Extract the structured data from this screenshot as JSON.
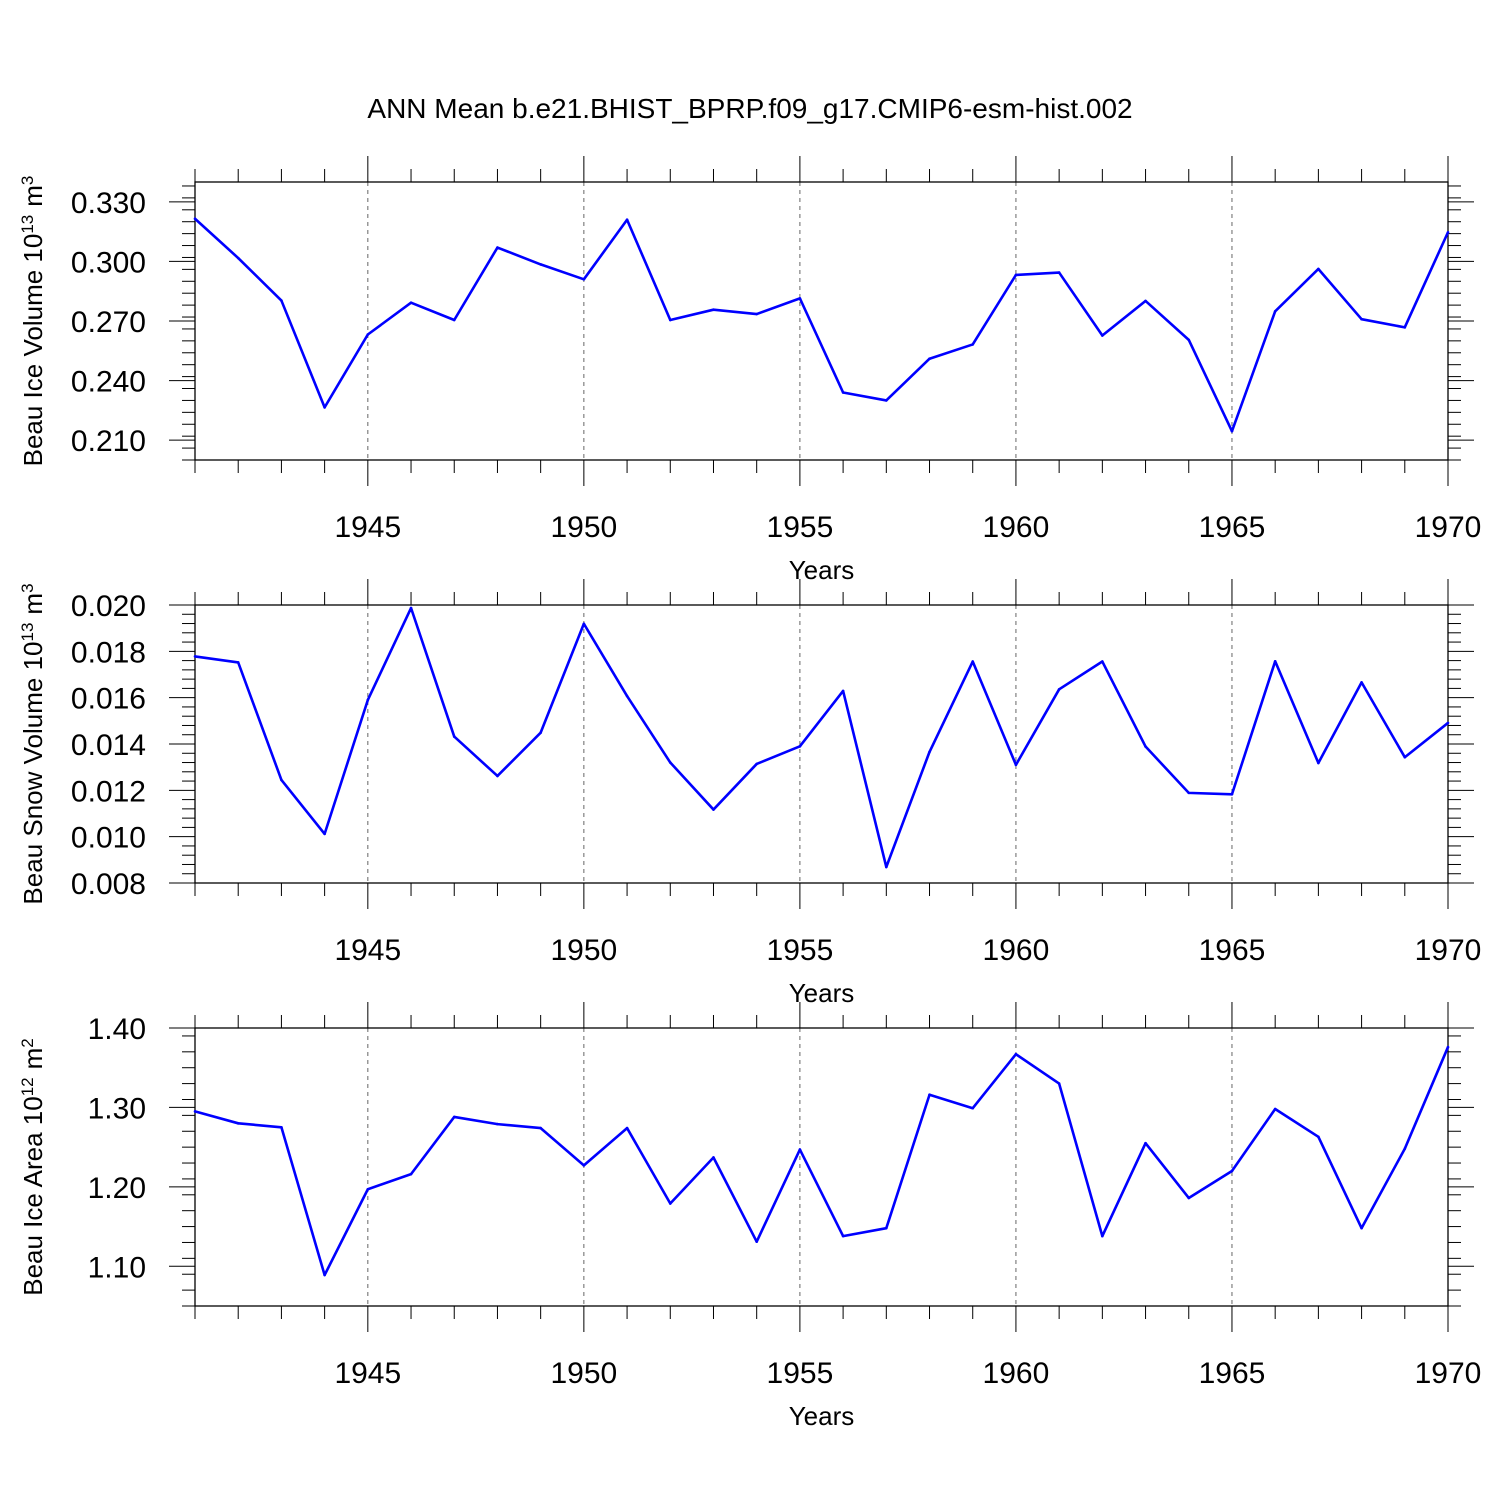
{
  "title": "ANN Mean b.e21.BHIST_BPRP.f09_g17.CMIP6-esm-hist.002",
  "colors": {
    "line": "#0000ff",
    "axis": "#000000",
    "grid": "#666666"
  },
  "chart_data": [
    {
      "type": "line",
      "ylabel": "Beau Ice Volume 10",
      "ylabel_exp": "13",
      "ylabel_unit": "m",
      "ylabel_unit_exp": "3",
      "xlabel": "Years",
      "xlim": [
        1941,
        1970
      ],
      "ylim": [
        0.2,
        0.34
      ],
      "yticks": [
        "0.210",
        "0.240",
        "0.270",
        "0.300",
        "0.330"
      ],
      "xticks": [
        "1945",
        "1950",
        "1955",
        "1960",
        "1965",
        "1970"
      ],
      "x": [
        1941,
        1942,
        1943,
        1944,
        1945,
        1946,
        1947,
        1948,
        1949,
        1950,
        1951,
        1952,
        1953,
        1954,
        1955,
        1956,
        1957,
        1958,
        1959,
        1960,
        1961,
        1962,
        1963,
        1964,
        1965,
        1966,
        1967,
        1968,
        1969,
        1970
      ],
      "values": [
        0.3215,
        0.3017,
        0.2803,
        0.2265,
        0.2632,
        0.2792,
        0.2705,
        0.307,
        0.2985,
        0.291,
        0.321,
        0.2705,
        0.2757,
        0.2735,
        0.2814,
        0.234,
        0.23,
        0.251,
        0.2582,
        0.2932,
        0.2944,
        0.2627,
        0.2801,
        0.2605,
        0.2145,
        0.2749,
        0.2962,
        0.2709,
        0.2668,
        0.3147
      ]
    },
    {
      "type": "line",
      "ylabel": "Beau Snow Volume 10",
      "ylabel_exp": "13",
      "ylabel_unit": "m",
      "ylabel_unit_exp": "3",
      "xlabel": "Years",
      "xlim": [
        1941,
        1970
      ],
      "ylim": [
        0.008,
        0.02
      ],
      "yticks": [
        "0.008",
        "0.010",
        "0.012",
        "0.014",
        "0.016",
        "0.018",
        "0.020"
      ],
      "xticks": [
        "1945",
        "1950",
        "1955",
        "1960",
        "1965",
        "1970"
      ],
      "x": [
        1941,
        1942,
        1943,
        1944,
        1945,
        1946,
        1947,
        1948,
        1949,
        1950,
        1951,
        1952,
        1953,
        1954,
        1955,
        1956,
        1957,
        1958,
        1959,
        1960,
        1961,
        1962,
        1963,
        1964,
        1965,
        1966,
        1967,
        1968,
        1969,
        1970
      ],
      "values": [
        0.01778,
        0.01752,
        0.01245,
        0.01012,
        0.0159,
        0.01987,
        0.01432,
        0.01262,
        0.01449,
        0.01919,
        0.01607,
        0.0132,
        0.01117,
        0.01314,
        0.0139,
        0.01629,
        0.00869,
        0.01366,
        0.01756,
        0.0131,
        0.01636,
        0.01756,
        0.01389,
        0.01189,
        0.01183,
        0.01757,
        0.01318,
        0.01666,
        0.01343,
        0.01491
      ]
    },
    {
      "type": "line",
      "ylabel": "Beau Ice Area 10",
      "ylabel_exp": "12",
      "ylabel_unit": "m",
      "ylabel_unit_exp": "2",
      "xlabel": "Years",
      "xlim": [
        1941,
        1970
      ],
      "ylim": [
        1.05,
        1.4
      ],
      "yticks": [
        "1.10",
        "1.20",
        "1.30",
        "1.40"
      ],
      "xticks": [
        "1945",
        "1950",
        "1955",
        "1960",
        "1965",
        "1970"
      ],
      "x": [
        1941,
        1942,
        1943,
        1944,
        1945,
        1946,
        1947,
        1948,
        1949,
        1950,
        1951,
        1952,
        1953,
        1954,
        1955,
        1956,
        1957,
        1958,
        1959,
        1960,
        1961,
        1962,
        1963,
        1964,
        1965,
        1966,
        1967,
        1968,
        1969,
        1970
      ],
      "values": [
        1.295,
        1.28,
        1.275,
        1.089,
        1.197,
        1.216,
        1.288,
        1.279,
        1.274,
        1.227,
        1.274,
        1.179,
        1.237,
        1.131,
        1.247,
        1.138,
        1.148,
        1.316,
        1.299,
        1.367,
        1.33,
        1.138,
        1.255,
        1.186,
        1.22,
        1.298,
        1.263,
        1.148,
        1.248,
        1.376
      ]
    }
  ]
}
